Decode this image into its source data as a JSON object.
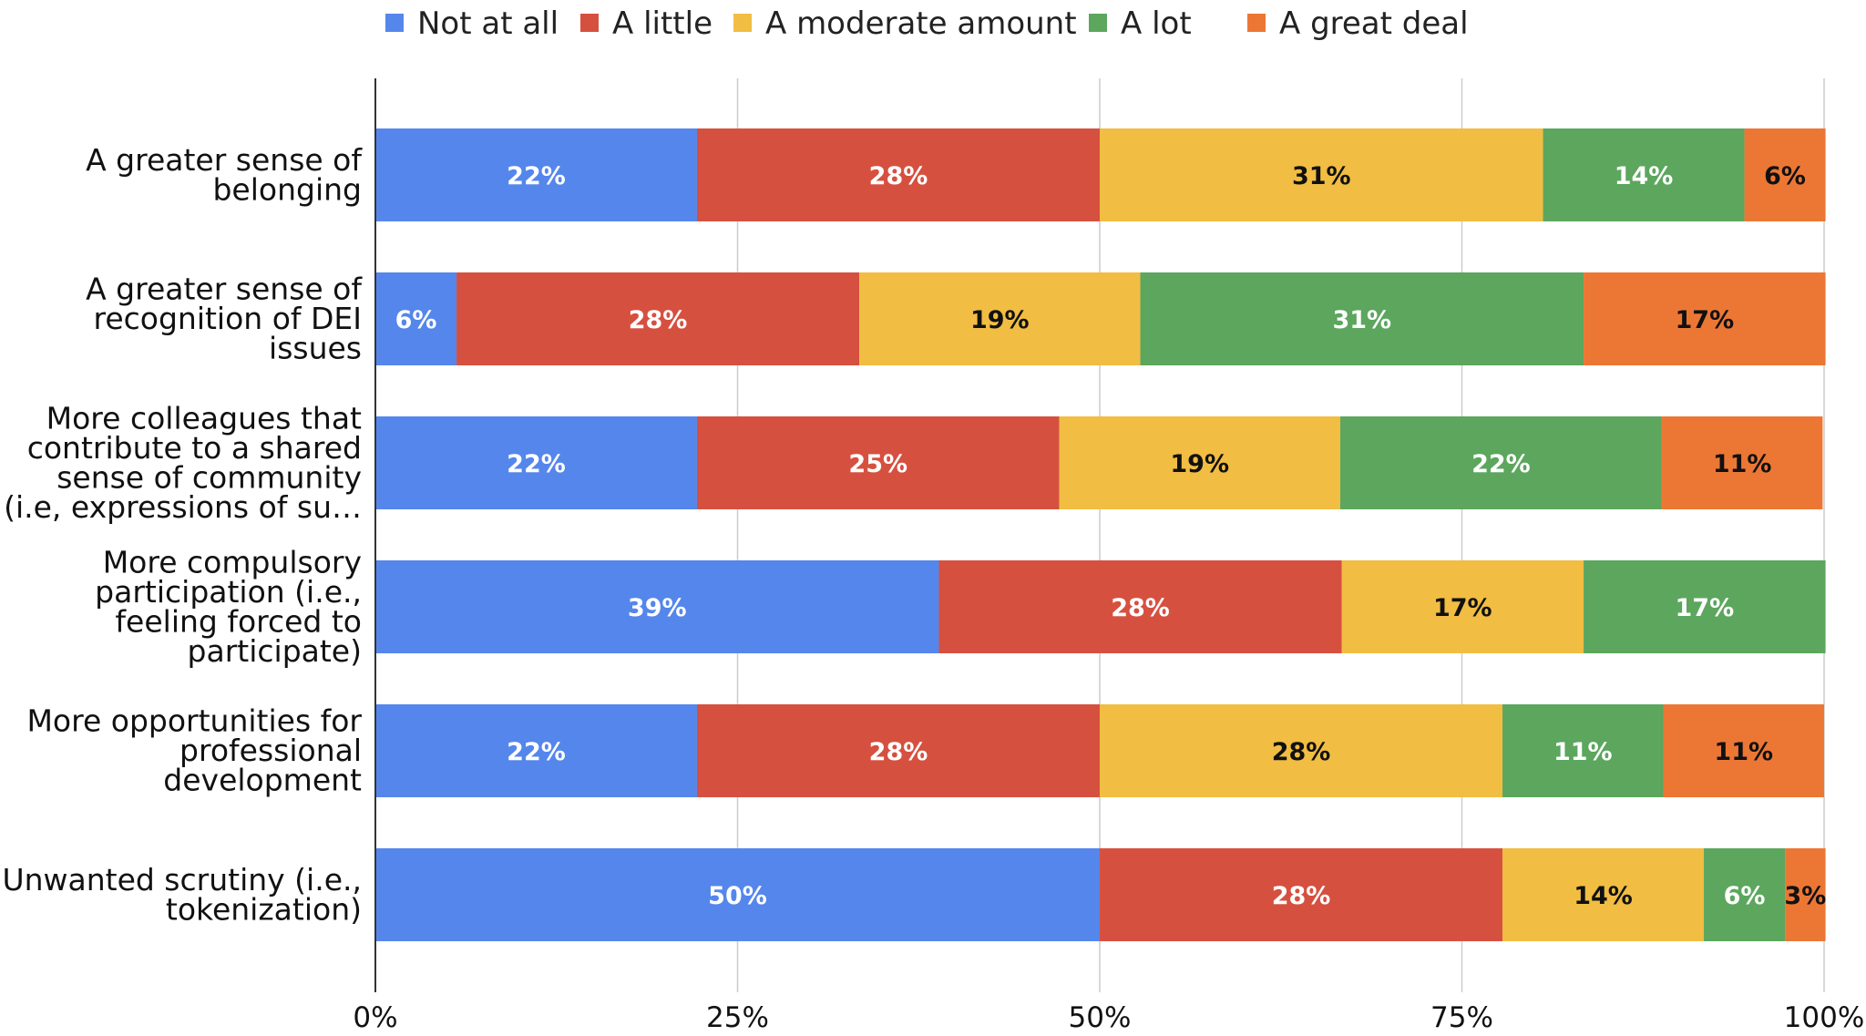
{
  "chart_data": {
    "type": "bar",
    "orientation": "horizontal",
    "stacked": "percent",
    "categories": [
      [
        "A greater sense of",
        "belonging"
      ],
      [
        "A greater sense of",
        "recognition of DEI",
        "issues"
      ],
      [
        "More colleagues that",
        "contribute to a shared",
        "sense of community",
        "(i.e, expressions of su…"
      ],
      [
        "More compulsory",
        "participation (i.e.,",
        "feeling forced to",
        "participate)"
      ],
      [
        "More opportunities for",
        "professional",
        "development"
      ],
      [
        "Unwanted scrutiny (i.e.,",
        "tokenization)"
      ]
    ],
    "series": [
      {
        "name": "Not at all",
        "color": "#5586eb",
        "label_color": "#ffffff",
        "values": [
          22.2,
          5.6,
          22.2,
          38.9,
          22.2,
          50.0
        ],
        "labels": [
          "22%",
          "6%",
          "22%",
          "39%",
          "22%",
          "50%"
        ]
      },
      {
        "name": "A little",
        "color": "#d65040",
        "label_color": "#ffffff",
        "values": [
          27.8,
          27.8,
          25.0,
          27.8,
          27.8,
          27.8
        ],
        "labels": [
          "28%",
          "28%",
          "25%",
          "28%",
          "28%",
          "28%"
        ]
      },
      {
        "name": "A moderate amount",
        "color": "#f1bd42",
        "label_color": "#111111",
        "values": [
          30.6,
          19.4,
          19.4,
          16.7,
          27.8,
          13.9
        ],
        "labels": [
          "31%",
          "19%",
          "19%",
          "17%",
          "28%",
          "14%"
        ]
      },
      {
        "name": "A lot",
        "color": "#5ca65e",
        "label_color": "#ffffff",
        "values": [
          13.9,
          30.6,
          22.2,
          16.7,
          11.1,
          5.6
        ],
        "labels": [
          "14%",
          "31%",
          "22%",
          "17%",
          "11%",
          "6%"
        ]
      },
      {
        "name": "A great deal",
        "color": "#ec7734",
        "label_color": "#111111",
        "values": [
          5.6,
          16.7,
          11.1,
          0,
          11.1,
          2.8
        ],
        "labels": [
          "6%",
          "17%",
          "11%",
          "",
          "11%",
          "3%"
        ]
      }
    ],
    "xlim": [
      0,
      100
    ],
    "xticks": [
      "0%",
      "25%",
      "50%",
      "75%",
      "100%"
    ],
    "grid": true,
    "legend_position": "top"
  }
}
